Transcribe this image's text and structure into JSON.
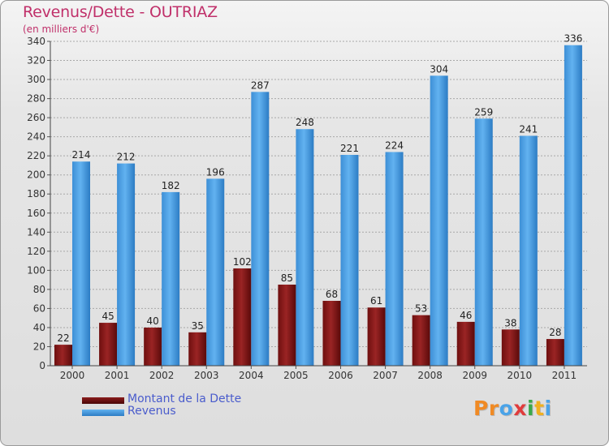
{
  "chart_data": {
    "type": "bar",
    "title": "Revenus/Dette - OUTRIAZ",
    "subtitle": "(en milliers d'€)",
    "categories": [
      "2000",
      "2001",
      "2002",
      "2003",
      "2004",
      "2005",
      "2006",
      "2007",
      "2008",
      "2009",
      "2010",
      "2011"
    ],
    "series": [
      {
        "name": "Montant de la Dette",
        "color": "#8b1a1a",
        "values": [
          22,
          45,
          40,
          35,
          102,
          85,
          68,
          61,
          53,
          46,
          38,
          28
        ]
      },
      {
        "name": "Revenus",
        "color": "#4a9ee0",
        "values": [
          214,
          212,
          182,
          196,
          287,
          248,
          221,
          224,
          304,
          259,
          241,
          336
        ]
      }
    ],
    "ylim": [
      0,
      340
    ],
    "yticks": [
      0,
      20,
      40,
      60,
      80,
      100,
      120,
      140,
      160,
      180,
      200,
      220,
      240,
      260,
      280,
      300,
      320,
      340
    ],
    "xlabel": "",
    "ylabel": "",
    "legend_position": "bottom-left"
  },
  "logo": {
    "text": "Proxiti",
    "letters": [
      {
        "ch": "P",
        "color": "#f08a24"
      },
      {
        "ch": "r",
        "color": "#f08a24"
      },
      {
        "ch": "o",
        "color": "#4aa3e8"
      },
      {
        "ch": "x",
        "color": "#e03c3c"
      },
      {
        "ch": "i",
        "color": "#3aa84a"
      },
      {
        "ch": "t",
        "color": "#f0b020"
      },
      {
        "ch": "i",
        "color": "#4aa3e8"
      }
    ]
  }
}
